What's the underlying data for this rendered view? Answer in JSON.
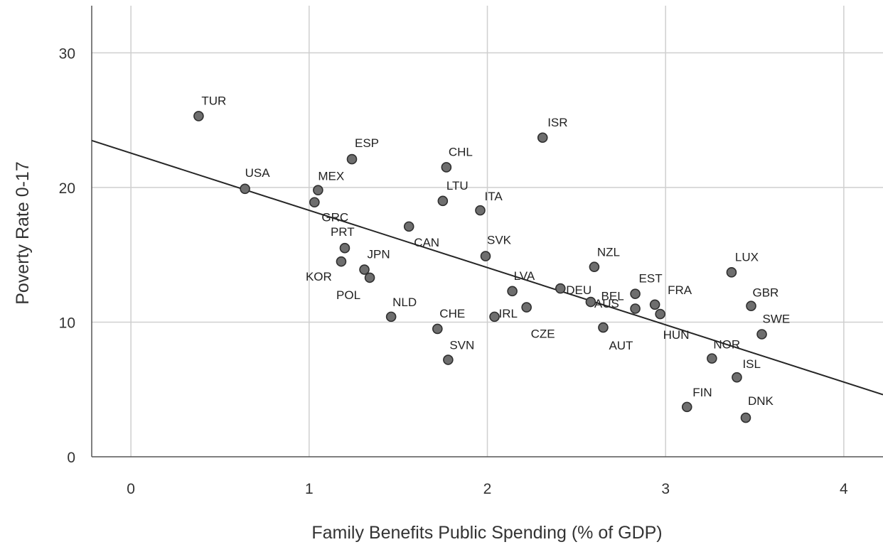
{
  "chart_data": {
    "type": "scatter",
    "title": "",
    "xlabel": "Family Benefits Public Spending (% of GDP)",
    "ylabel": "Poverty Rate 0-17",
    "xlim": [
      -0.22,
      4.22
    ],
    "ylim": [
      0,
      33.5
    ],
    "x_ticks": [
      "0",
      "1",
      "2",
      "3",
      "4"
    ],
    "y_ticks": [
      "0",
      "10",
      "20",
      "30"
    ],
    "grid": true,
    "legend": "none",
    "colors": {
      "point_fill": "#6e6e6e",
      "point_stroke": "#2f2f2f",
      "grid": "#cfcfcf",
      "fit_line": "#262626",
      "axis": "#555555"
    },
    "fit_line": {
      "intercept": 22.55,
      "slope": -4.25
    },
    "points": [
      {
        "label": "TUR",
        "x": 0.38,
        "y": 25.3
      },
      {
        "label": "USA",
        "x": 0.64,
        "y": 19.9
      },
      {
        "label": "MEX",
        "x": 1.05,
        "y": 19.8
      },
      {
        "label": "GRC",
        "x": 1.03,
        "y": 18.9
      },
      {
        "label": "ESP",
        "x": 1.24,
        "y": 22.1
      },
      {
        "label": "PRT",
        "x": 1.2,
        "y": 15.5
      },
      {
        "label": "KOR",
        "x": 1.18,
        "y": 14.5
      },
      {
        "label": "JPN",
        "x": 1.31,
        "y": 13.9
      },
      {
        "label": "POL",
        "x": 1.34,
        "y": 13.3
      },
      {
        "label": "CAN",
        "x": 1.56,
        "y": 17.1
      },
      {
        "label": "NLD",
        "x": 1.46,
        "y": 10.4
      },
      {
        "label": "CHL",
        "x": 1.77,
        "y": 21.5
      },
      {
        "label": "LTU",
        "x": 1.75,
        "y": 19.0
      },
      {
        "label": "ITA",
        "x": 1.96,
        "y": 18.3
      },
      {
        "label": "SVK",
        "x": 1.99,
        "y": 14.9
      },
      {
        "label": "CHE",
        "x": 1.72,
        "y": 9.5
      },
      {
        "label": "SVN",
        "x": 1.78,
        "y": 7.2
      },
      {
        "label": "ISR",
        "x": 2.31,
        "y": 23.7
      },
      {
        "label": "LVA",
        "x": 2.14,
        "y": 12.3
      },
      {
        "label": "IRL",
        "x": 2.04,
        "y": 10.4
      },
      {
        "label": "CZE",
        "x": 2.22,
        "y": 11.1
      },
      {
        "label": "DEU",
        "x": 2.41,
        "y": 12.5
      },
      {
        "label": "AUS",
        "x": 2.58,
        "y": 11.5
      },
      {
        "label": "NZL",
        "x": 2.6,
        "y": 14.1
      },
      {
        "label": "AUT",
        "x": 2.65,
        "y": 9.6
      },
      {
        "label": "BEL",
        "x": 2.83,
        "y": 11.0
      },
      {
        "label": "EST",
        "x": 2.83,
        "y": 12.1
      },
      {
        "label": "FRA",
        "x": 2.94,
        "y": 11.3
      },
      {
        "label": "HUN",
        "x": 2.97,
        "y": 10.6
      },
      {
        "label": "LUX",
        "x": 3.37,
        "y": 13.7
      },
      {
        "label": "GBR",
        "x": 3.48,
        "y": 11.2
      },
      {
        "label": "SWE",
        "x": 3.54,
        "y": 9.1
      },
      {
        "label": "NOR",
        "x": 3.26,
        "y": 7.3
      },
      {
        "label": "ISL",
        "x": 3.4,
        "y": 5.9
      },
      {
        "label": "FIN",
        "x": 3.12,
        "y": 3.7
      },
      {
        "label": "DNK",
        "x": 3.45,
        "y": 2.9
      }
    ]
  }
}
